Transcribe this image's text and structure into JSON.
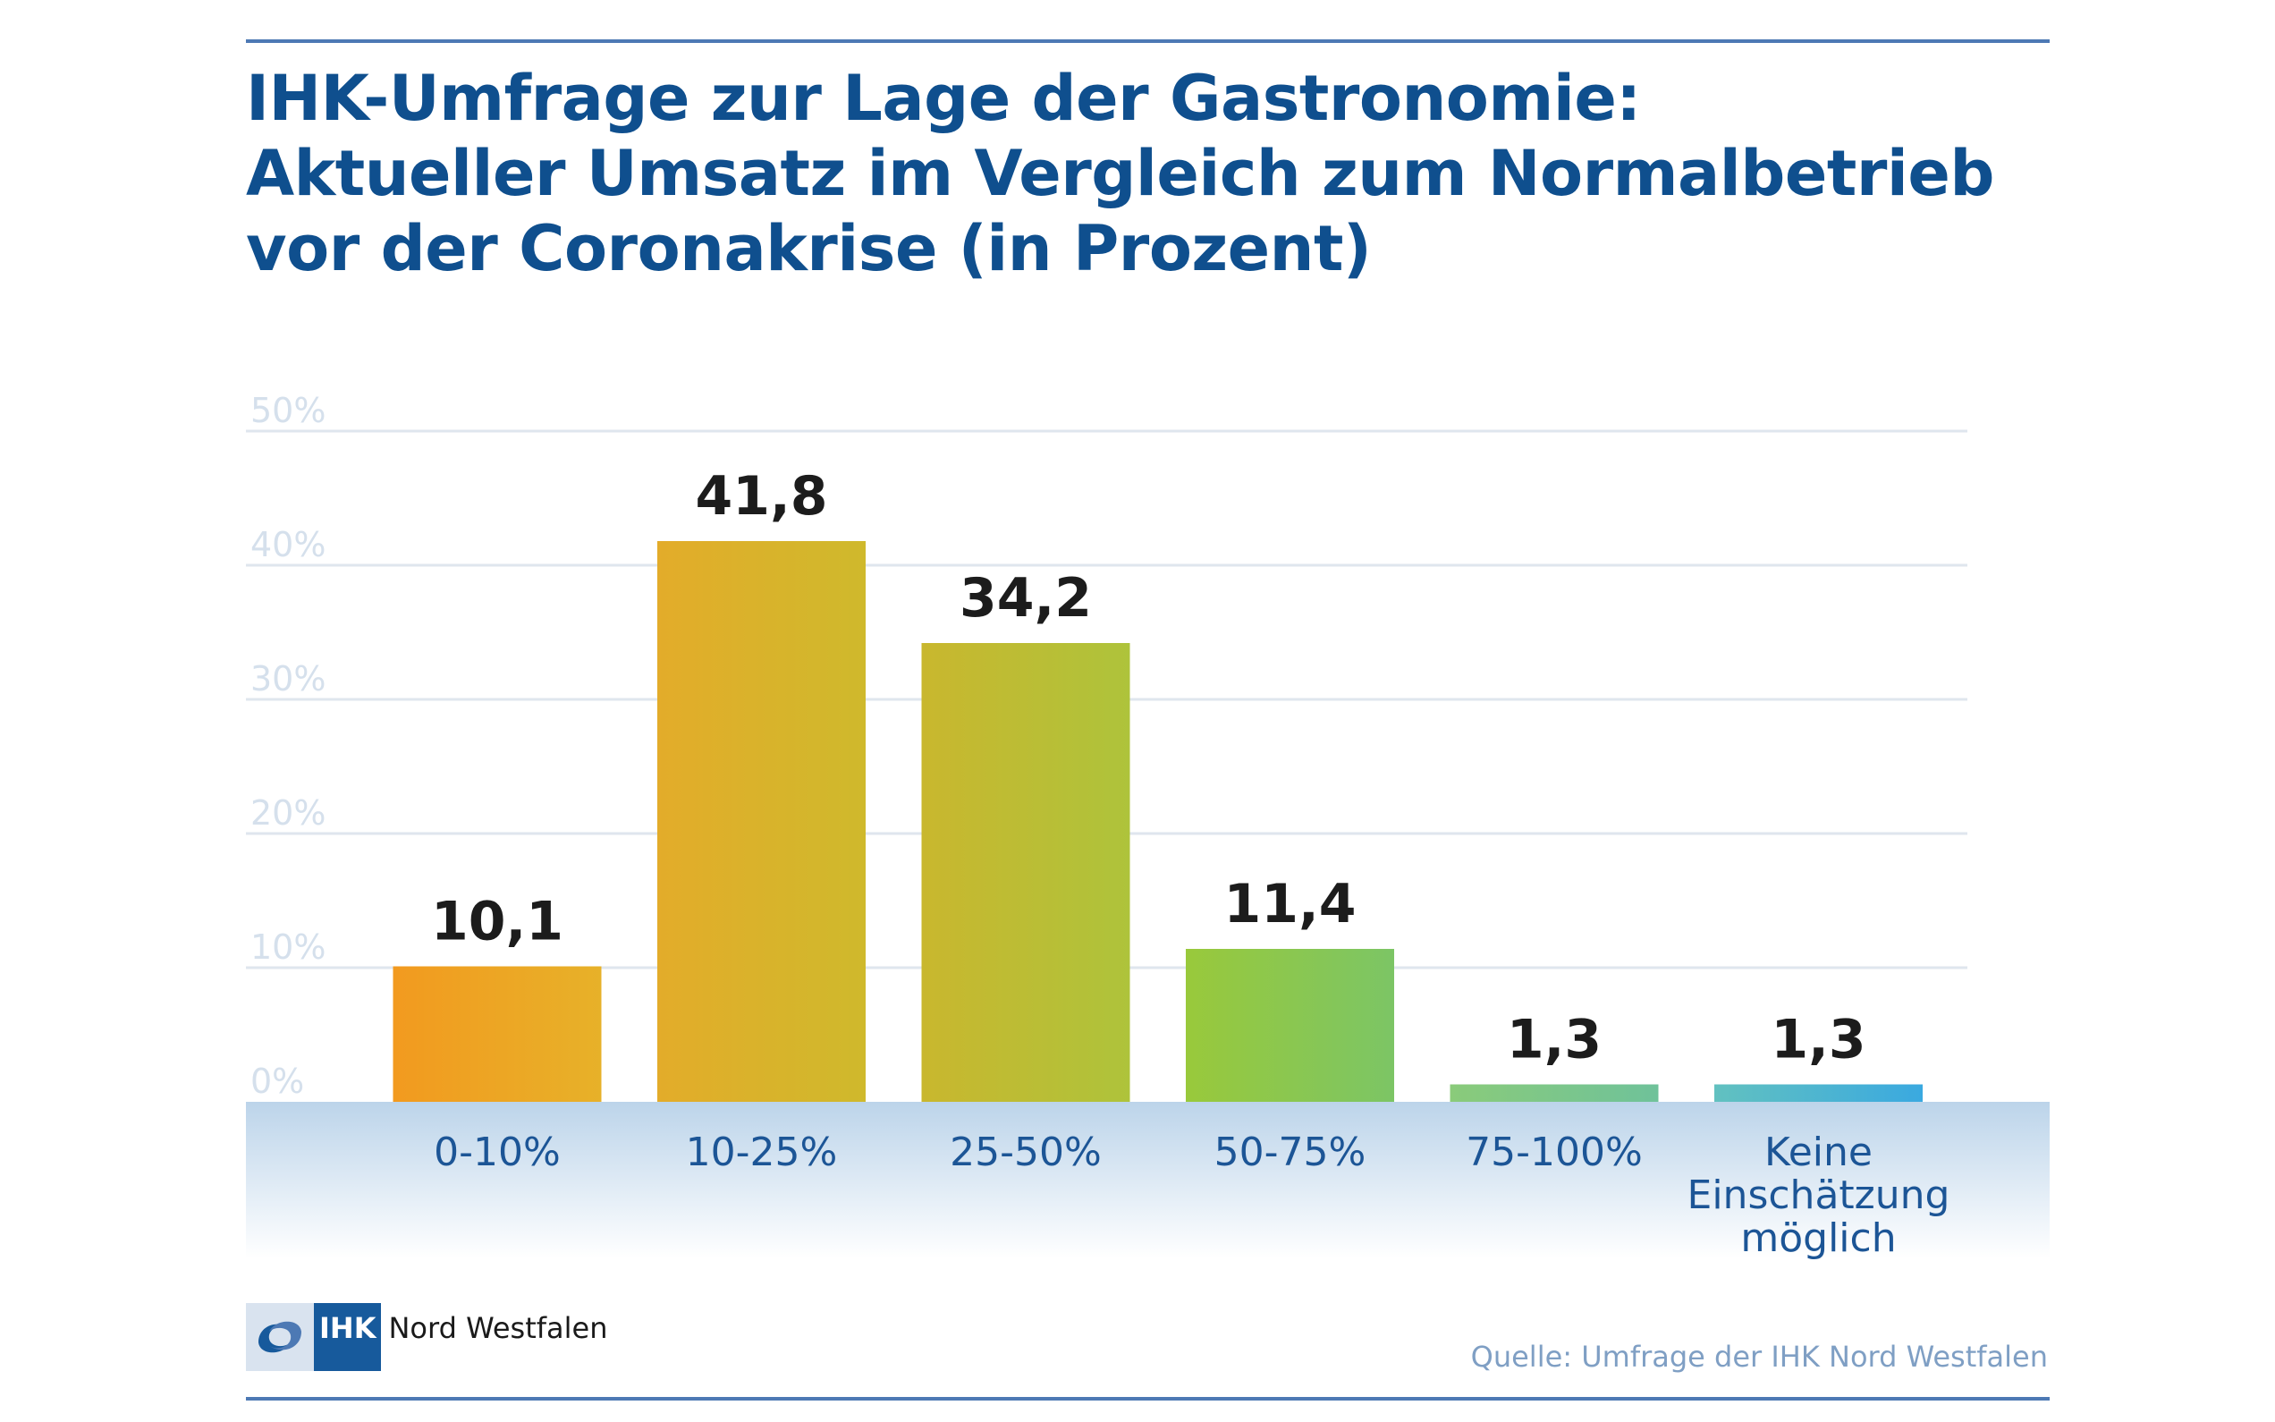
{
  "title_lines": [
    "IHK-Umfrage zur Lage der Gastronomie:",
    "Aktueller Umsatz im Vergleich zum Normalbetrieb",
    "vor der Coronakrise (in Prozent)"
  ],
  "chart_data": {
    "type": "bar",
    "title": "IHK-Umfrage zur Lage der Gastronomie: Aktueller Umsatz im Vergleich zum Normalbetrieb vor der Coronakrise (in Prozent)",
    "categories": [
      [
        "0-10%"
      ],
      [
        "10-25%"
      ],
      [
        "25-50%"
      ],
      [
        "50-75%"
      ],
      [
        "75-100%"
      ],
      [
        "Keine",
        "Einschätzung",
        "möglich"
      ]
    ],
    "values": [
      10.1,
      41.8,
      34.2,
      11.4,
      1.3,
      1.3
    ],
    "value_labels": [
      "10,1",
      "41,8",
      "34,2",
      "11,4",
      "1,3",
      "1,3"
    ],
    "yticks": [
      "0%",
      "10%",
      "20%",
      "30%",
      "40%",
      "50%"
    ],
    "ylim": [
      0,
      50
    ],
    "grid": true,
    "bar_gradients": [
      [
        "#f29a1f",
        "#e7b129"
      ],
      [
        "#e3ac2a",
        "#cfb92c"
      ],
      [
        "#c9b72e",
        "#aec33b"
      ],
      [
        "#99c93b",
        "#7cc565"
      ],
      [
        "#8acb7a",
        "#6fc29a"
      ],
      [
        "#62c1c0",
        "#3aa9e0"
      ]
    ]
  },
  "logo": {
    "mark_text": "IHK",
    "name": "Nord Westfalen"
  },
  "source": "Quelle: Umfrage der IHK Nord Westfalen"
}
